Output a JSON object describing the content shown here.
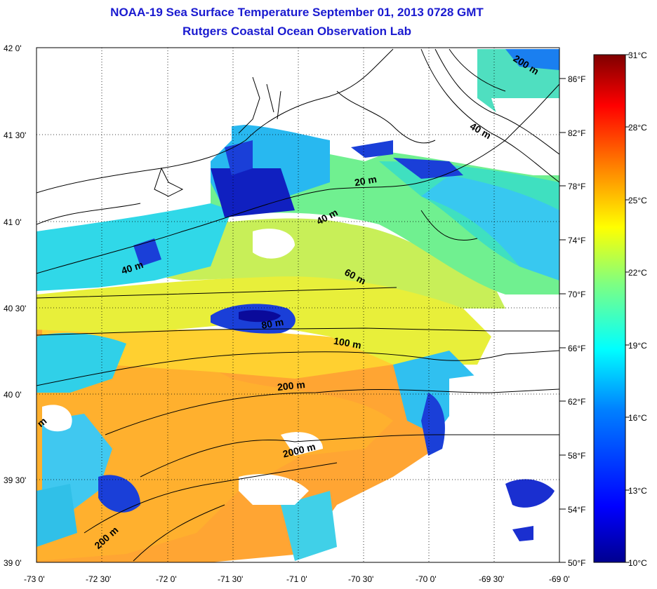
{
  "title": {
    "line1": "NOAA-19 Sea Surface Temperature September 01, 2013 0728 GMT",
    "line2": "Rutgers Coastal Ocean Observation Lab"
  },
  "map": {
    "lat_labels": [
      "42 0'",
      "41 30'",
      "41 0'",
      "40 30'",
      "40 0'",
      "39 30'",
      "39 0'"
    ],
    "lon_labels": [
      "-73 0'",
      "-72 30'",
      "-72 0'",
      "-71 30'",
      "-71 0'",
      "-70 30'",
      "-70 0'",
      "-69 30'",
      "-69 0'"
    ],
    "fahrenheit_labels": [
      "86°F",
      "82°F",
      "78°F",
      "74°F",
      "70°F",
      "66°F",
      "62°F",
      "58°F",
      "54°F",
      "50°F"
    ],
    "contour_labels": [
      "200 m",
      "40 m",
      "20 m",
      "40 m",
      "40 m",
      "60 m",
      "80 m",
      "100 m",
      "200 m",
      "m",
      "2000 m",
      "200 m"
    ]
  },
  "colorbar": {
    "labels": [
      "31°C",
      "28°C",
      "25°C",
      "22°C",
      "19°C",
      "16°C",
      "13°C",
      "10°C"
    ],
    "min_c": 10,
    "max_c": 31,
    "colors": [
      "#7f0000",
      "#ff0000",
      "#ff8000",
      "#ffff00",
      "#80ff80",
      "#00ffff",
      "#0080ff",
      "#0000ff",
      "#00008f"
    ]
  },
  "chart_data": {
    "type": "heatmap",
    "title": "NOAA-19 Sea Surface Temperature September 01, 2013 0728 GMT",
    "subtitle": "Rutgers Coastal Ocean Observation Lab",
    "x_range": [
      -73.0,
      -69.0
    ],
    "y_range": [
      39.0,
      42.0
    ],
    "colorbar_range_c": [
      10,
      31
    ],
    "colorbar_range_f": [
      50,
      88
    ]
  }
}
